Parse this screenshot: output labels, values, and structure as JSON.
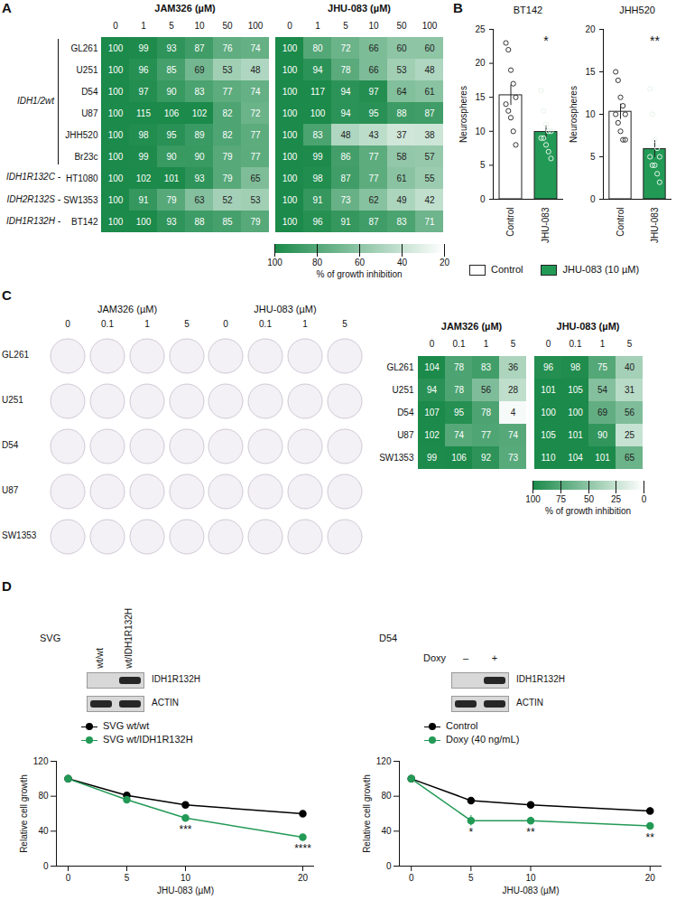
{
  "chart_data": [
    {
      "type": "heatmap",
      "panel_label": "A",
      "title": "JAM326 (µM)",
      "x": [
        0,
        1,
        5,
        10,
        50,
        100
      ],
      "categories": [
        "GL261",
        "U251",
        "D54",
        "U87",
        "JHH520",
        "Br23c",
        "HT1080",
        "SW1353",
        "BT142"
      ],
      "cells": [
        [
          100,
          99,
          93,
          87,
          76,
          74
        ],
        [
          100,
          96,
          85,
          69,
          53,
          48
        ],
        [
          100,
          97,
          90,
          83,
          77,
          74
        ],
        [
          100,
          115,
          106,
          102,
          82,
          72
        ],
        [
          100,
          98,
          95,
          89,
          82,
          77
        ],
        [
          100,
          99,
          90,
          90,
          79,
          77
        ],
        [
          100,
          102,
          101,
          93,
          79,
          65
        ],
        [
          100,
          91,
          79,
          63,
          52,
          53
        ],
        [
          100,
          100,
          93,
          88,
          85,
          79
        ]
      ],
      "row_groups": [
        {
          "label": "IDH1/2wt",
          "rows": [
            "GL261",
            "U251",
            "D54",
            "U87",
            "JHH520",
            "Br23c"
          ]
        },
        {
          "label": "IDH1R132C -",
          "rows": [
            "HT1080"
          ]
        },
        {
          "label": "IDH2R132S -",
          "rows": [
            "SW1353"
          ]
        },
        {
          "label": "IDH1R132H -",
          "rows": [
            "BT142"
          ]
        }
      ],
      "data_labels": true
    },
    {
      "type": "heatmap",
      "title": "JHU-083 (µM)",
      "x": [
        0,
        1,
        5,
        10,
        50,
        100
      ],
      "categories": [
        "GL261",
        "U251",
        "D54",
        "U87",
        "JHH520",
        "Br23c",
        "HT1080",
        "SW1353",
        "BT142"
      ],
      "cells": [
        [
          100,
          80,
          72,
          66,
          60,
          60
        ],
        [
          100,
          94,
          78,
          66,
          53,
          48
        ],
        [
          100,
          117,
          94,
          97,
          64,
          61
        ],
        [
          100,
          100,
          94,
          95,
          88,
          87
        ],
        [
          100,
          83,
          48,
          43,
          37,
          38
        ],
        [
          100,
          99,
          86,
          77,
          58,
          57
        ],
        [
          100,
          98,
          87,
          77,
          61,
          55
        ],
        [
          100,
          91,
          73,
          62,
          49,
          42
        ],
        [
          100,
          96,
          91,
          87,
          83,
          71
        ]
      ],
      "colorbar": {
        "label": "% of growth inhibition",
        "range": [
          100,
          20
        ],
        "ticks": [
          100,
          80,
          60,
          40,
          20
        ],
        "colors": [
          "#1b8a4a",
          "#ffffff"
        ]
      },
      "data_labels": true
    },
    {
      "type": "bar",
      "panel_label": "B",
      "title": "BT142",
      "ylabel": "Neurospheres",
      "categories": [
        "Control",
        "JHU-083"
      ],
      "values": [
        15.3,
        9.9
      ],
      "errors": [
        1.5,
        0.9
      ],
      "points": [
        [
          23,
          22,
          19,
          17,
          15,
          14,
          13,
          12,
          10,
          8
        ],
        [
          16,
          13,
          11,
          10,
          10,
          9,
          9,
          8,
          7,
          6
        ]
      ],
      "colors": [
        "#ffffff",
        "#229a56"
      ],
      "significance": [
        null,
        "*"
      ],
      "ylim": [
        0,
        25
      ],
      "yticks": [
        0,
        5,
        10,
        15,
        20,
        25
      ]
    },
    {
      "type": "bar",
      "title": "JHH520",
      "ylabel": "Neurospheres",
      "categories": [
        "Control",
        "JHU-083"
      ],
      "values": [
        10.3,
        5.9
      ],
      "errors": [
        0.9,
        1.0
      ],
      "points": [
        [
          15,
          14,
          12,
          11,
          10,
          10,
          9,
          8,
          7,
          7
        ],
        [
          13,
          10,
          7,
          6,
          5,
          5,
          4,
          4,
          3,
          2
        ]
      ],
      "colors": [
        "#ffffff",
        "#229a56"
      ],
      "significance": [
        null,
        "**"
      ],
      "ylim": [
        0,
        20
      ],
      "yticks": [
        0,
        5,
        10,
        15,
        20
      ]
    },
    {
      "type": "legend",
      "items": [
        {
          "name": "Control",
          "color": "#ffffff"
        },
        {
          "name": "JHU-083 (10 µM)",
          "color": "#229a56"
        }
      ]
    },
    {
      "type": "image_grid",
      "panel_label": "C",
      "groups": [
        {
          "title": "JAM326 (µM)",
          "columns": [
            0,
            0.1,
            1,
            5
          ]
        },
        {
          "title": "JHU-083 (µM)",
          "columns": [
            0,
            0.1,
            1,
            5
          ]
        }
      ],
      "rows": [
        "GL261",
        "U251",
        "D54",
        "U87",
        "SW1353"
      ]
    },
    {
      "type": "heatmap",
      "title": "JAM326 (µM)",
      "x": [
        0,
        0.1,
        1,
        5
      ],
      "categories": [
        "GL261",
        "U251",
        "D54",
        "U87",
        "SW1353"
      ],
      "cells": [
        [
          104,
          78,
          83,
          36
        ],
        [
          94,
          78,
          56,
          28
        ],
        [
          107,
          95,
          78,
          4
        ],
        [
          102,
          74,
          77,
          74
        ],
        [
          99,
          106,
          92,
          73
        ]
      ],
      "data_labels": true
    },
    {
      "type": "heatmap",
      "title": "JHU-083 (µM)",
      "x": [
        0,
        0.1,
        1,
        5
      ],
      "categories": [
        "GL261",
        "U251",
        "D54",
        "U87",
        "SW1353"
      ],
      "cells": [
        [
          96,
          98,
          75,
          40
        ],
        [
          101,
          105,
          54,
          31
        ],
        [
          100,
          100,
          69,
          56
        ],
        [
          105,
          101,
          90,
          25
        ],
        [
          110,
          104,
          101,
          65
        ]
      ],
      "colorbar": {
        "label": "% of growth inhibition",
        "range": [
          100,
          0
        ],
        "ticks": [
          100,
          75,
          50,
          25,
          0
        ],
        "colors": [
          "#1b8a4a",
          "#ffffff"
        ]
      },
      "data_labels": true
    },
    {
      "type": "western_blot",
      "panel_label": "D",
      "title": "SVG",
      "lanes": [
        "wt/wt",
        "wt/IDH1R132H"
      ],
      "bands": [
        "IDH1R132H",
        "ACTIN"
      ],
      "band_present": [
        [
          false,
          true
        ],
        [
          true,
          true
        ]
      ]
    },
    {
      "type": "western_blot",
      "title": "D54",
      "lane_header": "Doxy",
      "lanes": [
        "–",
        "+"
      ],
      "bands": [
        "IDH1R132H",
        "ACTIN"
      ],
      "band_present": [
        [
          false,
          true
        ],
        [
          true,
          true
        ]
      ]
    },
    {
      "type": "line",
      "xlabel": "JHU-083 (µM)",
      "ylabel": "Relative cell growth",
      "x": [
        0,
        5,
        10,
        20
      ],
      "xlim": [
        -1,
        21
      ],
      "xticks": [
        0,
        5,
        10,
        20
      ],
      "ylim": [
        0,
        120
      ],
      "yticks": [
        0,
        40,
        80,
        120
      ],
      "marker": "circle",
      "legend": "top",
      "series": [
        {
          "name": "SVG wt/wt",
          "color": "#000000",
          "values": [
            100,
            81,
            70,
            60
          ],
          "errors": [
            3,
            1,
            1,
            1
          ]
        },
        {
          "name": "SVG wt/IDH1R132H",
          "color": "#229a56",
          "values": [
            100,
            76,
            55,
            33
          ],
          "errors": [
            3,
            1,
            1,
            1
          ]
        }
      ],
      "significance": [
        null,
        null,
        "***",
        "****"
      ]
    },
    {
      "type": "line",
      "xlabel": "JHU-083 (µM)",
      "ylabel": "Relative cell growth",
      "x": [
        0,
        5,
        10,
        20
      ],
      "xlim": [
        -1,
        21
      ],
      "xticks": [
        0,
        5,
        10,
        20
      ],
      "ylim": [
        0,
        120
      ],
      "yticks": [
        0,
        40,
        80,
        120
      ],
      "marker": "circle",
      "legend": "top",
      "series": [
        {
          "name": "Control",
          "color": "#000000",
          "values": [
            100,
            75,
            70,
            63
          ],
          "errors": [
            3,
            3,
            1,
            4
          ]
        },
        {
          "name": "Doxy (40 ng/mL)",
          "color": "#229a56",
          "values": [
            100,
            52,
            52,
            46
          ],
          "errors": [
            3,
            6,
            4,
            1
          ]
        }
      ],
      "significance": [
        null,
        "*",
        "**",
        "**"
      ]
    }
  ]
}
